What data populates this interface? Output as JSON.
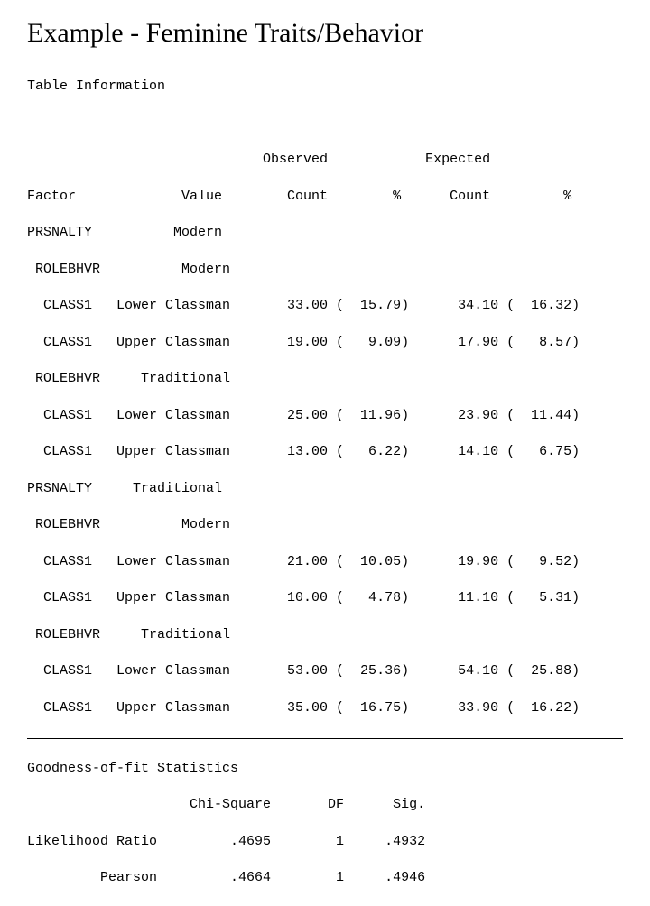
{
  "title": "Example - Feminine Traits/Behavior",
  "table_info_label": "Table Information",
  "header": {
    "h1a": "                             Observed            Expected",
    "h1b": "Factor             Value        Count        %      Count         %"
  },
  "rows": [
    "PRSNALTY          Modern",
    " ROLEBHVR          Modern",
    "  CLASS1   Lower Classman       33.00 (  15.79)      34.10 (  16.32)",
    "  CLASS1   Upper Classman       19.00 (   9.09)      17.90 (   8.57)",
    " ROLEBHVR     Traditional",
    "  CLASS1   Lower Classman       25.00 (  11.96)      23.90 (  11.44)",
    "  CLASS1   Upper Classman       13.00 (   6.22)      14.10 (   6.75)",
    "PRSNALTY     Traditional",
    " ROLEBHVR          Modern",
    "  CLASS1   Lower Classman       21.00 (  10.05)      19.90 (   9.52)",
    "  CLASS1   Upper Classman       10.00 (   4.78)      11.10 (   5.31)",
    " ROLEBHVR     Traditional",
    "  CLASS1   Lower Classman       53.00 (  25.36)      54.10 (  25.88)",
    "  CLASS1   Upper Classman       35.00 (  16.75)      33.90 (  16.22)"
  ],
  "gof": {
    "title": "Goodness-of-fit Statistics",
    "header": "                    Chi-Square       DF      Sig.",
    "rows": [
      "Likelihood Ratio         .4695        1     .4932",
      "         Pearson         .4664        1     .4946"
    ]
  }
}
